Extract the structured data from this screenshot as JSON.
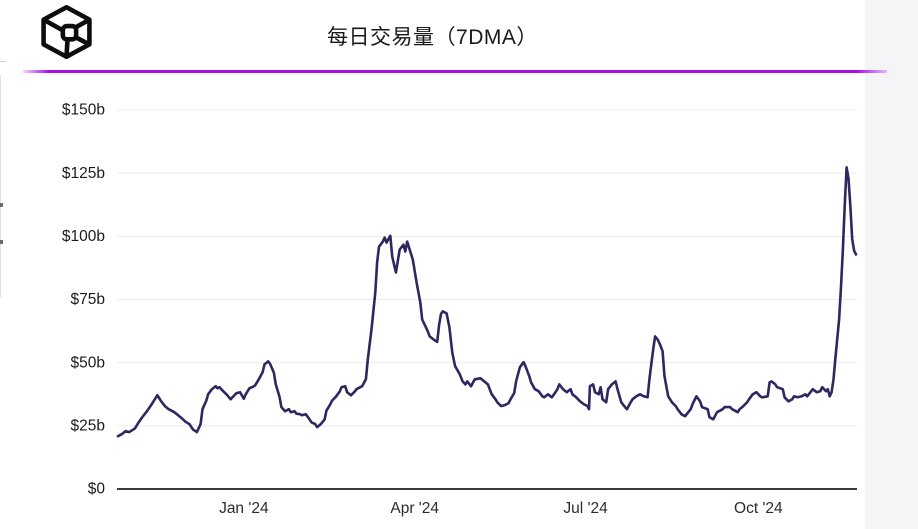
{
  "header": {
    "title": "每日交易量（7DMA）",
    "logo": "the-block-cube-logo"
  },
  "colors": {
    "accent_rule": "#a80df0",
    "line": "#2d2860",
    "gridline": "#ececec",
    "axis": "#3c3c3c",
    "tick_text": "#1c1c1c",
    "card_bg": "#ffffff",
    "page_bg": "#f5f5f7"
  },
  "chart_data": {
    "type": "line",
    "title": "每日交易量（7DMA）",
    "unit": "USD billions",
    "grid": true,
    "legend_position": "none",
    "ylim": [
      0,
      150
    ],
    "ytick_values": [
      150,
      125,
      100,
      75,
      50,
      25,
      0
    ],
    "ytick_labels": [
      "$150b",
      "$125b",
      "$100b",
      "$75b",
      "$50b",
      "$25b",
      "$0"
    ],
    "x_start_date": "2023-10-26",
    "x_total_days": 393,
    "xticks": [
      {
        "label": "Jan '24",
        "day": 67
      },
      {
        "label": "Apr '24",
        "day": 158
      },
      {
        "label": "Jul '24",
        "day": 249
      },
      {
        "label": "Oct '24",
        "day": 341
      }
    ],
    "series": [
      {
        "name": "每日交易量 7DMA ($b)",
        "points": [
          [
            0,
            20.9
          ],
          [
            2,
            21.7
          ],
          [
            4,
            22.9
          ],
          [
            6,
            22.5
          ],
          [
            9,
            24
          ],
          [
            11,
            26.4
          ],
          [
            13,
            28.5
          ],
          [
            15,
            30.4
          ],
          [
            18,
            33.6
          ],
          [
            20,
            36
          ],
          [
            21,
            37.1
          ],
          [
            23,
            34.7
          ],
          [
            25,
            32.8
          ],
          [
            27,
            31.6
          ],
          [
            30,
            30.4
          ],
          [
            32,
            29.2
          ],
          [
            34,
            28
          ],
          [
            36,
            26.6
          ],
          [
            38,
            25.7
          ],
          [
            40,
            23.5
          ],
          [
            42,
            22.5
          ],
          [
            44,
            25.7
          ],
          [
            45,
            31.6
          ],
          [
            47,
            35
          ],
          [
            48,
            37.5
          ],
          [
            50,
            39.5
          ],
          [
            52,
            40.7
          ],
          [
            53,
            39.9
          ],
          [
            54,
            40.3
          ],
          [
            56,
            38.7
          ],
          [
            58,
            37.3
          ],
          [
            60,
            35.5
          ],
          [
            61,
            36.3
          ],
          [
            63,
            37.9
          ],
          [
            65,
            38.3
          ],
          [
            67,
            35.7
          ],
          [
            68,
            37.5
          ],
          [
            70,
            39.9
          ],
          [
            72,
            40.5
          ],
          [
            73,
            41
          ],
          [
            75,
            43.4
          ],
          [
            77,
            46.2
          ],
          [
            78,
            49.3
          ],
          [
            80,
            50.5
          ],
          [
            81,
            49.5
          ],
          [
            83,
            46
          ],
          [
            84,
            41.5
          ],
          [
            86,
            36.5
          ],
          [
            87,
            32.4
          ],
          [
            89,
            30.8
          ],
          [
            91,
            31.6
          ],
          [
            92,
            30.4
          ],
          [
            94,
            30.8
          ],
          [
            95,
            29.8
          ],
          [
            97,
            29.6
          ],
          [
            98,
            29.2
          ],
          [
            100,
            29.6
          ],
          [
            102,
            27.6
          ],
          [
            103,
            26.4
          ],
          [
            105,
            25.7
          ],
          [
            106,
            24.5
          ],
          [
            108,
            25.7
          ],
          [
            110,
            27.5
          ],
          [
            111,
            31
          ],
          [
            113,
            33.5
          ],
          [
            114,
            35
          ],
          [
            116,
            36.5
          ],
          [
            118,
            38.5
          ],
          [
            119,
            40.3
          ],
          [
            121,
            40.7
          ],
          [
            122,
            38.3
          ],
          [
            124,
            37.1
          ],
          [
            126,
            38.5
          ],
          [
            127,
            39.5
          ],
          [
            129,
            40.3
          ],
          [
            130,
            40.7
          ],
          [
            132,
            43.4
          ],
          [
            133,
            51.3
          ],
          [
            135,
            63.2
          ],
          [
            137,
            77.8
          ],
          [
            138,
            89.6
          ],
          [
            139,
            95.9
          ],
          [
            141,
            97.9
          ],
          [
            142,
            99.5
          ],
          [
            143,
            97.5
          ],
          [
            145,
            100.2
          ],
          [
            146,
            92
          ],
          [
            148,
            85.7
          ],
          [
            150,
            94.8
          ],
          [
            152,
            96.7
          ],
          [
            153,
            94
          ],
          [
            154,
            97.9
          ],
          [
            155,
            95.5
          ],
          [
            157,
            90.8
          ],
          [
            159,
            81.7
          ],
          [
            161,
            73.8
          ],
          [
            162,
            67.1
          ],
          [
            165,
            62.4
          ],
          [
            166,
            60.4
          ],
          [
            168,
            59.2
          ],
          [
            170,
            58.2
          ],
          [
            171,
            65
          ],
          [
            172,
            69.3
          ],
          [
            173,
            70.3
          ],
          [
            175,
            69.5
          ],
          [
            176.5,
            64
          ],
          [
            178,
            54
          ],
          [
            179.5,
            48.6
          ],
          [
            182,
            45.4
          ],
          [
            183.5,
            42.6
          ],
          [
            185,
            41.4
          ],
          [
            186,
            42.6
          ],
          [
            188,
            40.7
          ],
          [
            190,
            43.4
          ],
          [
            193,
            43.8
          ],
          [
            195,
            42.6
          ],
          [
            197,
            41.4
          ],
          [
            199,
            37.5
          ],
          [
            201,
            35.5
          ],
          [
            202,
            34.3
          ],
          [
            204,
            32.8
          ],
          [
            206,
            33.2
          ],
          [
            208,
            34
          ],
          [
            209,
            35.5
          ],
          [
            211,
            38
          ],
          [
            212,
            42.6
          ],
          [
            214,
            48.2
          ],
          [
            216,
            50.2
          ],
          [
            217,
            48.6
          ],
          [
            219,
            44.6
          ],
          [
            220,
            42.2
          ],
          [
            222,
            39.5
          ],
          [
            224,
            38.7
          ],
          [
            226,
            36.7
          ],
          [
            227,
            36.3
          ],
          [
            229,
            37.5
          ],
          [
            231,
            36.3
          ],
          [
            233,
            38.3
          ],
          [
            234,
            39.5
          ],
          [
            235,
            41.4
          ],
          [
            237,
            39.5
          ],
          [
            239,
            38.3
          ],
          [
            241,
            39.5
          ],
          [
            242,
            37.5
          ],
          [
            244,
            36.3
          ],
          [
            246,
            34.7
          ],
          [
            248,
            33.6
          ],
          [
            250,
            32.8
          ],
          [
            250.8,
            31.6
          ],
          [
            251.3,
            40.7
          ],
          [
            253,
            41.4
          ],
          [
            254,
            38.3
          ],
          [
            256,
            37.5
          ],
          [
            257,
            40.3
          ],
          [
            258,
            35.5
          ],
          [
            260,
            34.3
          ],
          [
            261,
            39.5
          ],
          [
            263,
            41.4
          ],
          [
            265,
            42.6
          ],
          [
            266,
            39.5
          ],
          [
            268,
            34.3
          ],
          [
            270,
            32.4
          ],
          [
            271,
            31.6
          ],
          [
            273,
            34.3
          ],
          [
            274,
            35.5
          ],
          [
            276,
            36.7
          ],
          [
            278,
            37.5
          ],
          [
            280,
            36.7
          ],
          [
            282,
            36.3
          ],
          [
            283,
            43.4
          ],
          [
            285,
            55.3
          ],
          [
            286,
            60.4
          ],
          [
            287.5,
            59
          ],
          [
            289,
            56.5
          ],
          [
            290,
            54.5
          ],
          [
            291,
            44.6
          ],
          [
            293,
            36.7
          ],
          [
            295,
            34.3
          ],
          [
            297,
            32.8
          ],
          [
            298,
            31.6
          ],
          [
            300,
            29.6
          ],
          [
            302,
            28.8
          ],
          [
            305,
            31.6
          ],
          [
            306,
            33.6
          ],
          [
            308,
            36.7
          ],
          [
            310,
            34.7
          ],
          [
            311,
            32.4
          ],
          [
            314,
            31.6
          ],
          [
            315,
            28.4
          ],
          [
            317,
            27.6
          ],
          [
            319,
            30.4
          ],
          [
            322,
            31.6
          ],
          [
            323,
            32.4
          ],
          [
            326,
            32.4
          ],
          [
            327,
            31.6
          ],
          [
            330,
            30.4
          ],
          [
            331,
            31.6
          ],
          [
            333,
            32.8
          ],
          [
            335,
            34.3
          ],
          [
            336,
            35.5
          ],
          [
            338,
            37.5
          ],
          [
            340,
            38.3
          ],
          [
            342,
            36.7
          ],
          [
            343,
            36.3
          ],
          [
            346,
            36.7
          ],
          [
            347,
            42.2
          ],
          [
            348,
            42.6
          ],
          [
            350,
            41.4
          ],
          [
            351,
            40.3
          ],
          [
            354,
            39.5
          ],
          [
            355,
            36.3
          ],
          [
            357,
            34.7
          ],
          [
            359,
            35.5
          ],
          [
            360,
            36.7
          ],
          [
            362,
            36.3
          ],
          [
            364,
            36.7
          ],
          [
            366,
            37.5
          ],
          [
            367,
            36.7
          ],
          [
            370,
            39.5
          ],
          [
            372,
            38.3
          ],
          [
            374,
            38.7
          ],
          [
            375,
            40.3
          ],
          [
            377,
            38.7
          ],
          [
            378,
            39.5
          ],
          [
            379,
            36.7
          ],
          [
            380,
            38.3
          ],
          [
            381,
            43.4
          ],
          [
            382,
            51.3
          ],
          [
            383,
            59.2
          ],
          [
            384,
            67.1
          ],
          [
            385,
            80
          ],
          [
            386,
            95
          ],
          [
            387,
            112
          ],
          [
            388,
            127.3
          ],
          [
            389,
            123
          ],
          [
            390,
            111.7
          ],
          [
            391,
            99
          ],
          [
            392,
            94.3
          ],
          [
            393,
            92.8
          ]
        ]
      }
    ]
  }
}
